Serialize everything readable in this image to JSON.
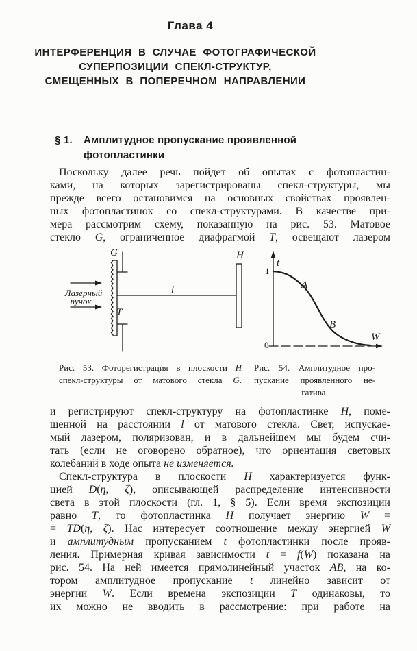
{
  "colors": {
    "ink": "#1e1e1e",
    "paper": "#fcfcfa"
  },
  "page": {
    "chapter": "Глава 4",
    "title_lines": [
      "ИНТЕРФЕРЕНЦИЯ В СЛУЧАЕ ФОТОГРАФИЧЕСКОЙ",
      "СУПЕРПОЗИЦИИ СПЕКЛ-СТРУКТУР,",
      "СМЕЩЕННЫХ В ПОПЕРЕЧНОМ НАПРАВЛЕНИИ"
    ],
    "section": {
      "number": "§ 1.",
      "line1": "Амплитудное пропускание проявленной",
      "line2": "фотопластинки"
    }
  },
  "paragraphs": {
    "p1": {
      "lines": [
        [
          "Поскольку далее речь пойдет об опытах с фотопластин-"
        ],
        [
          "ками, на которых зарегистрированы спекл-структуры, мы"
        ],
        [
          "прежде всего остановимся на основных свойствах проявлен-"
        ],
        [
          "ных фотопластинок со спекл-структурами. В качестве при-"
        ],
        [
          "мера рассмотрим схему, показанную на рис. 53. Матовое"
        ],
        [
          "стекло ",
          [
            "G"
          ],
          ", ограниченное диафрагмой ",
          [
            "T"
          ],
          ", освещают лазером"
        ]
      ]
    },
    "p2": {
      "lines": [
        [
          "и регистрируют спекл-структуру на фотопластинке ",
          [
            "H"
          ],
          ", поме-"
        ],
        [
          "щенной на расстоянии ",
          [
            "l"
          ],
          " от матового стекла. Свет, испускае-"
        ],
        [
          "мый лазером, поляризован, и в дальнейшем мы будем счи-"
        ],
        [
          "тать (если не оговорено обратное), что ориентация световых"
        ],
        [
          "колебаний в ходе опыта ",
          [
            "не изменяется."
          ]
        ]
      ]
    },
    "p3": {
      "lines": [
        [
          "Спекл-структура в плоскости ",
          [
            "H"
          ],
          " характеризуется функ-"
        ],
        [
          "цией ",
          [
            "D"
          ],
          "(",
          [
            "η"
          ],
          ", ",
          [
            "ζ"
          ],
          "), описывающей распределение интенсивности"
        ],
        [
          "света в этой плоскости (гл. 1, § 5). Если время экспозиции"
        ],
        [
          "равно ",
          [
            "T"
          ],
          ", то фотопластинка ",
          [
            "H"
          ],
          " получает энергию ",
          [
            "W"
          ],
          " ="
        ],
        [
          "= ",
          [
            "TD"
          ],
          "(",
          [
            "η"
          ],
          ", ",
          [
            "ζ"
          ],
          "). Нас интересует соотношение между энергией ",
          [
            "W"
          ]
        ],
        [
          "и ",
          [
            "амплитудным"
          ],
          " пропусканием ",
          [
            "t"
          ],
          " фотопластинки после прояв-"
        ],
        [
          "ления. Примерная кривая зависимости ",
          [
            "t"
          ],
          " = ",
          [
            "f"
          ],
          "(",
          [
            "W"
          ],
          ") показана на"
        ],
        [
          "рис. 54. На ней имеется прямолинейный участок ",
          [
            "AB"
          ],
          ", на ко-"
        ],
        [
          "тором амплитудное пропускание ",
          [
            "t"
          ],
          " линейно зависит от"
        ],
        [
          "энергии ",
          [
            "W"
          ],
          ". Если времена экспозиции ",
          [
            "T"
          ],
          " одинаковы, то"
        ],
        [
          "их можно не вводить в рассмотрение: при работе на"
        ]
      ]
    }
  },
  "figures": {
    "fig53": {
      "labels": {
        "G": "G",
        "T": "T",
        "H": "H",
        "l": "l"
      },
      "beam_label": [
        "Лазерный",
        "пучок"
      ],
      "caption_lines": [
        [
          "Рис. 53. Фоторегистрация в плоскости ",
          [
            "H"
          ]
        ],
        [
          "спекл-структуры от матового стекла ",
          [
            "G"
          ],
          "."
        ]
      ]
    },
    "fig54": {
      "labels": {
        "t": "t",
        "W": "W",
        "one": "1",
        "zero": "0",
        "A": "A",
        "B": "B"
      },
      "caption_lines": [
        [
          "Рис. 54. Амплитудное про-"
        ],
        [
          "пускание проявленного не-"
        ],
        [
          "гатива."
        ]
      ],
      "chart_note": {
        "type": "line",
        "xlabel": "W",
        "ylabel": "t",
        "y_start": 1,
        "y_end": 0,
        "shape": "decreasing sigmoid with linear section AB",
        "points": [
          "A",
          "B"
        ]
      }
    }
  }
}
